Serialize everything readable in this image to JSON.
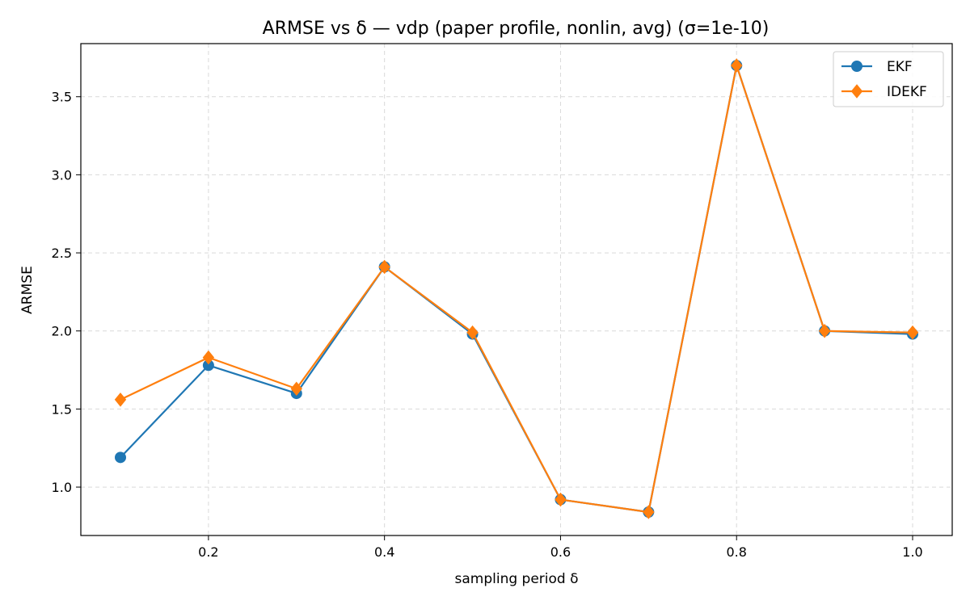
{
  "chart_data": {
    "type": "line",
    "title": "ARMSE vs δ — vdp (paper profile, nonlin, avg) (σ=1e-10)",
    "xlabel": "sampling period δ",
    "ylabel": "ARMSE",
    "xlim": [
      0.055,
      1.045
    ],
    "ylim": [
      0.69,
      3.84
    ],
    "xticks": [
      {
        "value": 0.2,
        "label": "0.2"
      },
      {
        "value": 0.4,
        "label": "0.4"
      },
      {
        "value": 0.6,
        "label": "0.6"
      },
      {
        "value": 0.8,
        "label": "0.8"
      },
      {
        "value": 1.0,
        "label": "1.0"
      }
    ],
    "yticks": [
      {
        "value": 1.0,
        "label": "1.0"
      },
      {
        "value": 1.5,
        "label": "1.5"
      },
      {
        "value": 2.0,
        "label": "2.0"
      },
      {
        "value": 2.5,
        "label": "2.5"
      },
      {
        "value": 3.0,
        "label": "3.0"
      },
      {
        "value": 3.5,
        "label": "3.5"
      }
    ],
    "grid": true,
    "legend_position": "top-right",
    "x": [
      0.1,
      0.2,
      0.3,
      0.4,
      0.5,
      0.6,
      0.7,
      0.8,
      0.9,
      1.0
    ],
    "series": [
      {
        "name": "EKF",
        "color": "#1f77b4",
        "marker": "circle",
        "values": [
          1.19,
          1.78,
          1.6,
          2.41,
          1.98,
          0.92,
          0.84,
          3.7,
          2.0,
          1.98
        ]
      },
      {
        "name": "IDEKF",
        "color": "#ff7f0e",
        "marker": "diamond",
        "values": [
          1.56,
          1.83,
          1.63,
          2.41,
          1.99,
          0.92,
          0.84,
          3.7,
          2.0,
          1.99
        ]
      }
    ]
  }
}
